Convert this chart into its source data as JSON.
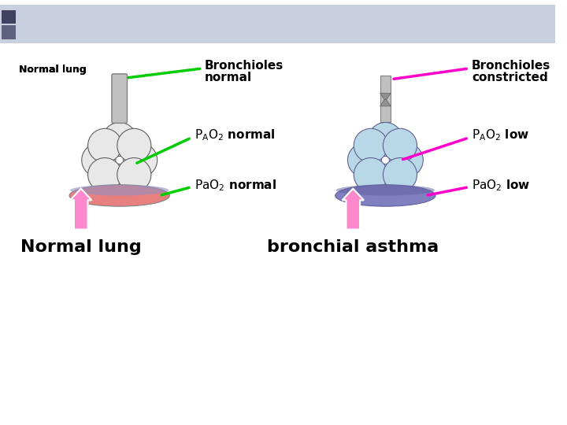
{
  "bg_color": "#ffffff",
  "header_color": "#c8d0e0",
  "label_normal_lung_small": "Normal lung",
  "label_bronchioles_normal_1": "Bronchioles",
  "label_bronchioles_normal_2": "normal",
  "label_bronchioles_constricted_1": "Bronchioles",
  "label_bronchioles_constricted_2": "constricted",
  "label_pao2_normal": "PₐO₂ normal",
  "label_pao2_low": "PₐO₂ low",
  "label_pao2_normal2": "PaO₂ normal",
  "label_pao2_low2": "PaO₂ low",
  "label_normal_lung": "Normal lung",
  "label_bronchial_asthma": "bronchial asthma",
  "green_color": "#00cc00",
  "magenta_color": "#ff00cc",
  "pink_arrow_color": "#ff88cc",
  "alveoli_normal_color": "#e8e8e8",
  "alveoli_constricted_color": "#b8d8e8",
  "blood_normal_color": "#e88080",
  "blood_normal_top_color": "#9090c0",
  "blood_constricted_color": "#8080c0",
  "blood_constricted_top_color": "#6060a0",
  "tube_color": "#c0c0c0",
  "tube_edge_color": "#808080",
  "sq1_color": "#404060",
  "sq2_color": "#606080"
}
